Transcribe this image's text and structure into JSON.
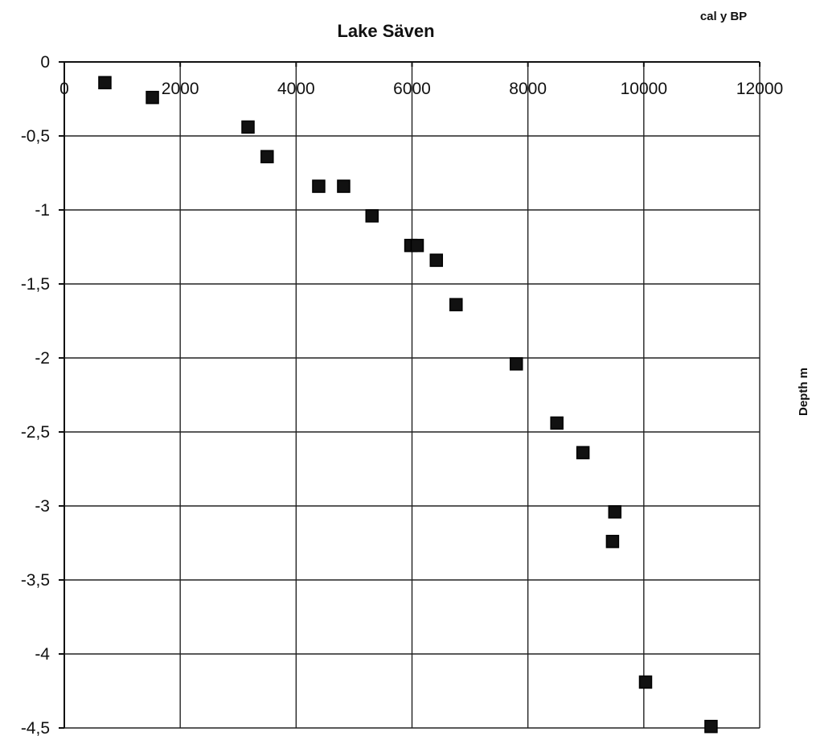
{
  "chart_data": {
    "type": "scatter",
    "title": "Lake Säven",
    "xlabel": "cal y BP",
    "ylabel": "Depth m",
    "xlim": [
      0,
      12000
    ],
    "ylim": [
      -4.5,
      0
    ],
    "x_ticks": [
      0,
      2000,
      4000,
      6000,
      8000,
      10000,
      12000
    ],
    "x_tick_labels": [
      "0",
      "2000",
      "4000",
      "6000",
      "8000",
      "10000",
      "12000"
    ],
    "y_ticks": [
      0,
      -0.5,
      -1,
      -1.5,
      -2,
      -2.5,
      -3,
      -3.5,
      -4,
      -4.5
    ],
    "y_tick_labels": [
      "0",
      "-0,5",
      "-1",
      "-1,5",
      "-2",
      "-2,5",
      "-3",
      "-3,5",
      "-4",
      "-4,5"
    ],
    "grid": true,
    "x_axis_position": "top",
    "marker": "square",
    "marker_color": "#111111",
    "points": [
      {
        "x": 700,
        "y": -0.14
      },
      {
        "x": 1520,
        "y": -0.24
      },
      {
        "x": 3170,
        "y": -0.44
      },
      {
        "x": 3500,
        "y": -0.64
      },
      {
        "x": 4390,
        "y": -0.84
      },
      {
        "x": 4820,
        "y": -0.84
      },
      {
        "x": 5310,
        "y": -1.04
      },
      {
        "x": 5980,
        "y": -1.24
      },
      {
        "x": 6090,
        "y": -1.24
      },
      {
        "x": 6420,
        "y": -1.34
      },
      {
        "x": 6760,
        "y": -1.64
      },
      {
        "x": 7800,
        "y": -2.04
      },
      {
        "x": 8500,
        "y": -2.44
      },
      {
        "x": 8950,
        "y": -2.64
      },
      {
        "x": 9500,
        "y": -3.04
      },
      {
        "x": 9460,
        "y": -3.24
      },
      {
        "x": 10030,
        "y": -4.19
      },
      {
        "x": 11160,
        "y": -4.49
      }
    ]
  }
}
